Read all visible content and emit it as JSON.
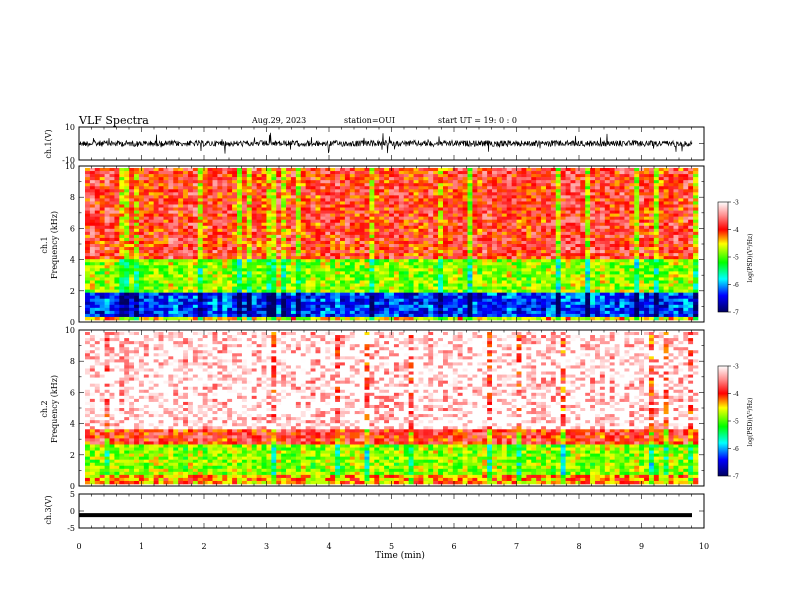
{
  "header": {
    "title": "VLF Spectra",
    "date": "Aug.29, 2023",
    "station": "station=OUI",
    "start": "start  UT =   19: 0  : 0"
  },
  "chart_data": [
    {
      "type": "line",
      "panel": "waveform-ch1",
      "ylabel": "ch.1(V)",
      "ylim": [
        -10,
        10
      ],
      "ytick_labels": [
        "10",
        "-10"
      ],
      "xlim": [
        0,
        10
      ],
      "baseline": 0,
      "note": "dense noisy waveform centered near 0 V"
    },
    {
      "type": "heatmap",
      "panel": "spectrogram-ch1",
      "ylabel_top": "ch.1",
      "ylabel": "Frequency  (kHz)",
      "ylim": [
        0,
        10
      ],
      "ytick_labels": [
        "0",
        "2",
        "4",
        "6",
        "8",
        "10"
      ],
      "xlim": [
        0,
        10
      ],
      "colorbar": {
        "label": "log(PSD)(V²/Hz)",
        "range": [
          -7,
          -3
        ],
        "tick_labels": [
          "-3",
          "-4",
          "-5",
          "-6",
          "-7"
        ]
      },
      "bands": [
        {
          "f_range": [
            0,
            0.3
          ],
          "level": -4.5
        },
        {
          "f_range": [
            0.3,
            1.8
          ],
          "level": -6.3
        },
        {
          "f_range": [
            1.8,
            4.0
          ],
          "level": -4.8
        },
        {
          "f_range": [
            4.0,
            10
          ],
          "level": -3.9
        }
      ]
    },
    {
      "type": "heatmap",
      "panel": "spectrogram-ch2",
      "ylabel_top": "ch.2",
      "ylabel": "Frequency  (kHz)",
      "ylim": [
        0,
        10
      ],
      "ytick_labels": [
        "0",
        "2",
        "4",
        "6",
        "8",
        "10"
      ],
      "xlim": [
        0,
        10
      ],
      "colorbar": {
        "label": "log(PSD)(V²/Hz)",
        "range": [
          -7,
          -3
        ],
        "tick_labels": [
          "-3",
          "-4",
          "-5",
          "-6",
          "-7"
        ]
      },
      "bands": [
        {
          "f_range": [
            0,
            0.6
          ],
          "level": -4.3
        },
        {
          "f_range": [
            0.6,
            2.5
          ],
          "level": -4.8
        },
        {
          "f_range": [
            2.5,
            3.5
          ],
          "level": -3.9
        },
        {
          "f_range": [
            3.5,
            10
          ],
          "level": -3.2
        }
      ]
    },
    {
      "type": "line",
      "panel": "waveform-ch3",
      "ylabel": "ch.3(V)",
      "ylim": [
        -5,
        5
      ],
      "ytick_labels": [
        "5",
        "0",
        "-5"
      ],
      "xlim": [
        0,
        10
      ],
      "baseline": -1.2,
      "note": "flat thick trace"
    }
  ],
  "x_axis": {
    "label": "Time  (min)",
    "tick_labels": [
      "0",
      "1",
      "2",
      "3",
      "4",
      "5",
      "6",
      "7",
      "8",
      "9",
      "10"
    ]
  },
  "colors": {
    "scale": [
      "#000080",
      "#0000ff",
      "#00ffff",
      "#00ff00",
      "#ffff00",
      "#ff0000",
      "#ffc0c0",
      "#ffffff"
    ]
  }
}
